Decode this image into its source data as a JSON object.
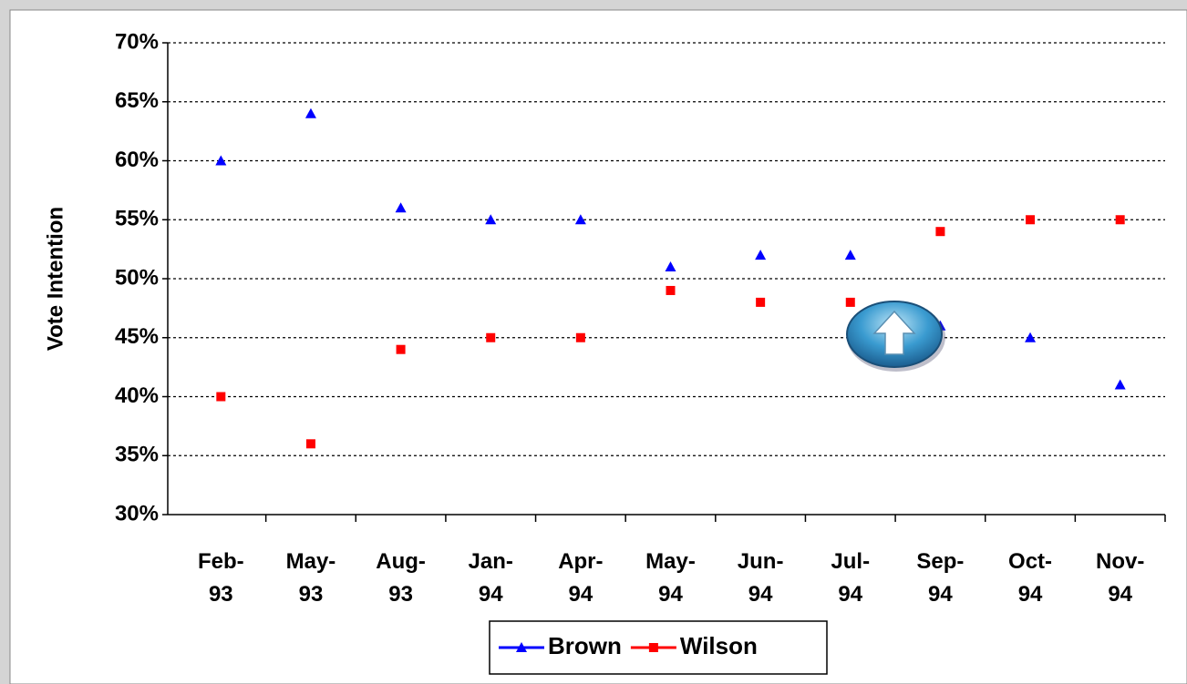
{
  "chart_data": {
    "type": "line",
    "ylabel": "Vote Intention",
    "categories": [
      "Feb-93",
      "May-93",
      "Aug-93",
      "Jan-94",
      "Apr-94",
      "May-94",
      "Jun-94",
      "Jul-94",
      "Sep-94",
      "Oct-94",
      "Nov-94"
    ],
    "series": [
      {
        "name": "Brown",
        "color": "#0000ff",
        "marker": "triangle",
        "values": [
          60,
          64,
          56,
          55,
          55,
          51,
          52,
          52,
          46,
          45,
          41
        ]
      },
      {
        "name": "Wilson",
        "color": "#ff0000",
        "marker": "square",
        "values": [
          40,
          36,
          44,
          45,
          45,
          49,
          48,
          48,
          54,
          55,
          55
        ]
      }
    ],
    "ylim": [
      30,
      70
    ],
    "yticks": [
      {
        "value": 30,
        "label": "30%"
      },
      {
        "value": 35,
        "label": "35%"
      },
      {
        "value": 40,
        "label": "40%"
      },
      {
        "value": 45,
        "label": "45%"
      },
      {
        "value": 50,
        "label": "50%"
      },
      {
        "value": 55,
        "label": "55%"
      },
      {
        "value": 60,
        "label": "60%"
      },
      {
        "value": 65,
        "label": "65%"
      },
      {
        "value": 70,
        "label": "70%"
      }
    ],
    "grid": true,
    "legend": "bottom"
  }
}
